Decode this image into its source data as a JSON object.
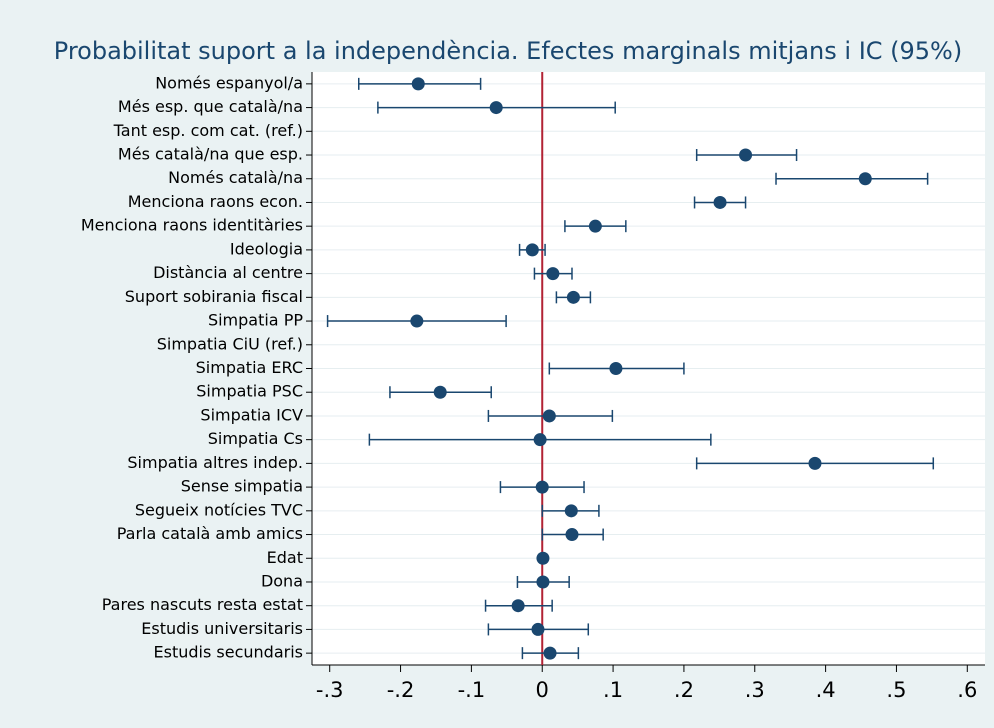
{
  "chart_data": {
    "type": "errorbar",
    "title": "Probabilitat suport a la independència. Efectes marginals mitjans i IC (95%)",
    "categories": [
      "Només espanyol/a",
      "Més esp. que català/na",
      "Tant esp. com cat. (ref.)",
      "Més català/na que esp.",
      "Només català/na",
      "Menciona raons econ.",
      "Menciona raons identitàries",
      "Ideologia",
      "Distància al centre",
      "Suport sobirania fiscal",
      "Simpatia PP",
      "Simpatia CiU (ref.)",
      "Simpatia ERC",
      "Simpatia PSC",
      "Simpatia ICV",
      "Simpatia Cs",
      "Simpatia altres indep.",
      "Sense simpatia",
      "Segueix notícies TVC",
      "Parla català amb amics",
      "Edat",
      "Dona",
      "Pares nascuts resta estat",
      "Estudis universitaris",
      "Estudis secundaris"
    ],
    "values": [
      -0.175,
      -0.065,
      null,
      0.287,
      0.456,
      0.251,
      0.075,
      -0.014,
      0.015,
      0.044,
      -0.177,
      null,
      0.104,
      -0.144,
      0.01,
      -0.003,
      0.385,
      0.0,
      0.041,
      0.042,
      0.001,
      0.001,
      -0.034,
      -0.006,
      0.011
    ],
    "lower": [
      -0.259,
      -0.232,
      null,
      0.218,
      0.33,
      0.215,
      0.032,
      -0.032,
      -0.011,
      0.02,
      -0.303,
      null,
      0.01,
      -0.215,
      -0.076,
      -0.244,
      0.218,
      -0.059,
      0.0,
      0.0,
      -0.001,
      -0.035,
      -0.08,
      -0.076,
      -0.028
    ],
    "upper": [
      -0.087,
      0.103,
      null,
      0.359,
      0.544,
      0.287,
      0.118,
      0.004,
      0.042,
      0.068,
      -0.051,
      null,
      0.2,
      -0.072,
      0.099,
      0.238,
      0.552,
      0.059,
      0.08,
      0.086,
      0.003,
      0.038,
      0.014,
      0.065,
      0.051
    ],
    "color": "#1a476f",
    "refline": 0,
    "refline_color": "#b22234",
    "xlim": [
      -0.325,
      0.625
    ],
    "xticks": [
      {
        "value": -0.3,
        "label": "-.3"
      },
      {
        "value": -0.2,
        "label": "-.2"
      },
      {
        "value": -0.1,
        "label": "-.1"
      },
      0,
      {
        "value": 0.1,
        "label": ".1"
      },
      {
        "value": 0.2,
        "label": ".2"
      },
      {
        "value": 0.3,
        "label": ".3"
      },
      {
        "value": 0.4,
        "label": ".4"
      },
      {
        "value": 0.5,
        "label": ".5"
      },
      {
        "value": 0.6,
        "label": ".6"
      }
    ],
    "grid": true
  }
}
